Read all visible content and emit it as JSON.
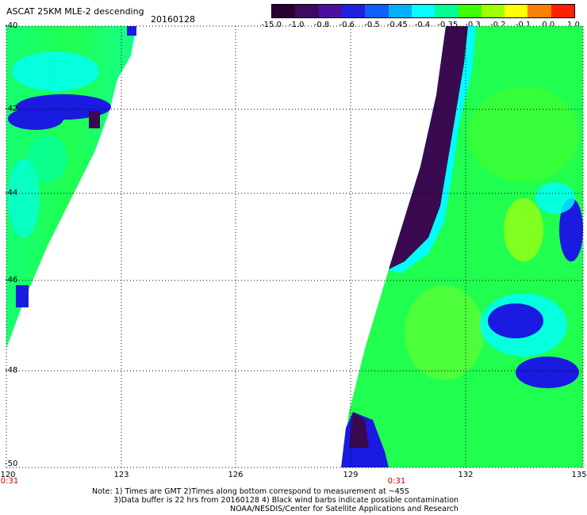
{
  "header": {
    "title": "ASCAT 25KM MLE-2 descending",
    "date": "20160128"
  },
  "colorbar": {
    "labels": [
      "-15.0",
      "-1.0",
      "-0.8",
      "-0.6",
      "-0.5",
      "-0.45",
      "-0.4",
      "-0.35",
      "-0.3",
      "-0.2",
      "-0.1",
      "0.0",
      "1.0"
    ],
    "colors": [
      "#2a0030",
      "#3c0a60",
      "#4a10a0",
      "#2020e0",
      "#1060ff",
      "#00b0ff",
      "#00ffff",
      "#00ff90",
      "#40ff00",
      "#a0ff00",
      "#ffff00",
      "#ff8000",
      "#ff2000"
    ]
  },
  "map": {
    "lat_labels": [
      "-40",
      "-42",
      "-44",
      "-46",
      "-48",
      "-50"
    ],
    "lon_labels": [
      "120",
      "123",
      "126",
      "129",
      "132",
      "135"
    ],
    "time_labels": [
      "0:31",
      "0:31"
    ],
    "swath_colors": {
      "dark": "#3a0a50",
      "purple": "#5010a0",
      "blue": "#1a1ae0",
      "cyan": "#00ffff",
      "aqua": "#00ffb0",
      "green": "#20ff50",
      "lime": "#80ff20"
    }
  },
  "notes": {
    "line1": "Note: 1) Times are GMT 2)Times along bottom correspond to measurement at ~45S",
    "line2": "3)Data buffer is 22 hrs from 20160128 4) Black wind barbs indicate possible contamination",
    "line3": "NOAA/NESDIS/Center for Satellite Applications and Research"
  }
}
